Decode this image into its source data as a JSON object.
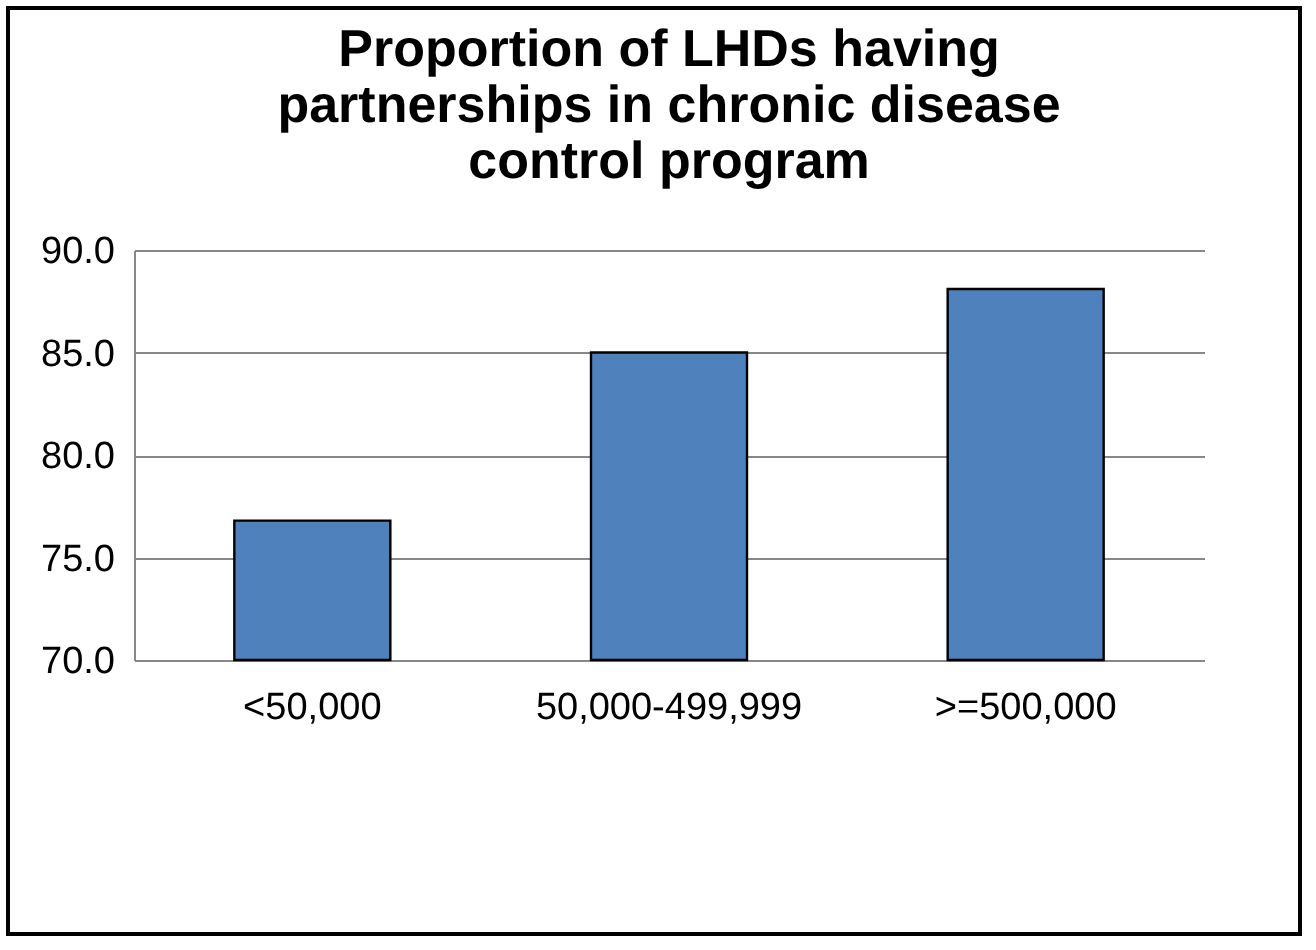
{
  "chart_data": {
    "type": "bar",
    "title": [
      "Proportion of LHDs having",
      "partnerships in chronic disease",
      "control program"
    ],
    "categories": [
      "<50,000",
      "50,000-499,999",
      ">=500,000"
    ],
    "values": [
      76.8,
      85.0,
      88.1
    ],
    "color": "#4f81bd",
    "ylim": [
      70,
      90
    ],
    "yticks": [
      {
        "value": 70,
        "label": "70.0"
      },
      {
        "value": 75,
        "label": "75.0"
      },
      {
        "value": 80,
        "label": "80.0"
      },
      {
        "value": 85,
        "label": "85.0"
      },
      {
        "value": 90,
        "label": "90.0"
      }
    ],
    "grid": "y"
  }
}
